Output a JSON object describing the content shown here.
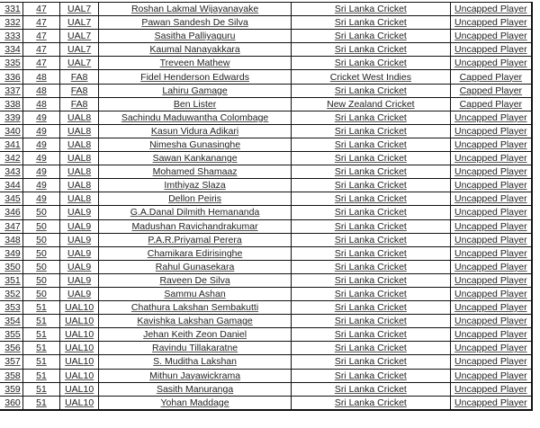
{
  "rows": [
    {
      "no": "331",
      "group": "47",
      "code": "UAL7",
      "name": "Roshan Lakmal Wijayanayake",
      "team": "Sri Lanka Cricket",
      "status": "Uncapped Player"
    },
    {
      "no": "332",
      "group": "47",
      "code": "UAL7",
      "name": "Pawan Sandesh De Silva",
      "team": "Sri Lanka Cricket",
      "status": "Uncapped Player"
    },
    {
      "no": "333",
      "group": "47",
      "code": "UAL7",
      "name": "Sasitha Palliyaguru",
      "team": "Sri Lanka Cricket",
      "status": "Uncapped Player"
    },
    {
      "no": "334",
      "group": "47",
      "code": "UAL7",
      "name": "Kaumal Nanayakkara",
      "team": "Sri Lanka Cricket",
      "status": "Uncapped Player"
    },
    {
      "no": "335",
      "group": "47",
      "code": "UAL7",
      "name": "Treveen Mathew",
      "team": "Sri Lanka Cricket",
      "status": "Uncapped Player"
    },
    {
      "no": "336",
      "group": "48",
      "code": "FA8",
      "name": "Fidel Henderson Edwards",
      "team": "Cricket West Indies",
      "status": "Capped Player"
    },
    {
      "no": "337",
      "group": "48",
      "code": "FA8",
      "name": "Lahiru Gamage",
      "team": "Sri Lanka Cricket",
      "status": "Capped Player"
    },
    {
      "no": "338",
      "group": "48",
      "code": "FA8",
      "name": "Ben Lister",
      "team": "New Zealand Cricket",
      "status": "Capped Player"
    },
    {
      "no": "339",
      "group": "49",
      "code": "UAL8",
      "name": "Sachindu Maduwantha Colombage",
      "team": "Sri Lanka Cricket",
      "status": "Uncapped Player"
    },
    {
      "no": "340",
      "group": "49",
      "code": "UAL8",
      "name": "Kasun Vidura Adikari",
      "team": "Sri Lanka Cricket",
      "status": "Uncapped Player"
    },
    {
      "no": "341",
      "group": "49",
      "code": "UAL8",
      "name": "Nimesha Gunasinghe",
      "team": "Sri Lanka Cricket",
      "status": "Uncapped Player"
    },
    {
      "no": "342",
      "group": "49",
      "code": "UAL8",
      "name": "Sawan Kankanange",
      "team": "Sri Lanka Cricket",
      "status": "Uncapped Player"
    },
    {
      "no": "343",
      "group": "49",
      "code": "UAL8",
      "name": "Mohamed Shamaaz",
      "team": "Sri Lanka Cricket",
      "status": "Uncapped Player"
    },
    {
      "no": "344",
      "group": "49",
      "code": "UAL8",
      "name": "Imthiyaz Slaza",
      "team": "Sri Lanka Cricket",
      "status": "Uncapped Player"
    },
    {
      "no": "345",
      "group": "49",
      "code": "UAL8",
      "name": "Dellon Peiris",
      "team": "Sri Lanka Cricket",
      "status": "Uncapped Player"
    },
    {
      "no": "346",
      "group": "50",
      "code": "UAL9",
      "name": "G.A.Danal Dilmith Hemananda",
      "team": "Sri Lanka Cricket",
      "status": "Uncapped Player"
    },
    {
      "no": "347",
      "group": "50",
      "code": "UAL9",
      "name": "Madushan Ravichandrakumar",
      "team": "Sri Lanka Cricket",
      "status": "Uncapped Player"
    },
    {
      "no": "348",
      "group": "50",
      "code": "UAL9",
      "name": "P.A.R.Priyamal Perera",
      "team": "Sri Lanka Cricket",
      "status": "Uncapped Player"
    },
    {
      "no": "349",
      "group": "50",
      "code": "UAL9",
      "name": "Chamikara Edirisinghe",
      "team": "Sri Lanka Cricket",
      "status": "Uncapped Player"
    },
    {
      "no": "350",
      "group": "50",
      "code": "UAL9",
      "name": "Rahul Gunasekara",
      "team": "Sri Lanka Cricket",
      "status": "Uncapped Player"
    },
    {
      "no": "351",
      "group": "50",
      "code": "UAL9",
      "name": "Raveen De Silva",
      "team": "Sri Lanka Cricket",
      "status": "Uncapped Player"
    },
    {
      "no": "352",
      "group": "50",
      "code": "UAL9",
      "name": "Sammu Ashan",
      "team": "Sri Lanka Cricket",
      "status": "Uncapped Player"
    },
    {
      "no": "353",
      "group": "51",
      "code": "UAL10",
      "name": "Chathura Lakshan Sembakutti",
      "team": "Sri Lanka Cricket",
      "status": "Uncapped Player"
    },
    {
      "no": "354",
      "group": "51",
      "code": "UAL10",
      "name": "Kavishka Lakshan Gamage",
      "team": "Sri Lanka Cricket",
      "status": "Uncapped Player"
    },
    {
      "no": "355",
      "group": "51",
      "code": "UAL10",
      "name": "Jehan Keith Zeon Daniel",
      "team": "Sri Lanka Cricket",
      "status": "Uncapped Player"
    },
    {
      "no": "356",
      "group": "51",
      "code": "UAL10",
      "name": "Ravindu Tillakaratne",
      "team": "Sri Lanka Cricket",
      "status": "Uncapped Player"
    },
    {
      "no": "357",
      "group": "51",
      "code": "UAL10",
      "name": "S. Muditha Lakshan",
      "team": "Sri Lanka Cricket",
      "status": "Uncapped Player"
    },
    {
      "no": "358",
      "group": "51",
      "code": "UAL10",
      "name": "Mithun Jayawickrama",
      "team": "Sri Lanka Cricket",
      "status": "Uncapped Player"
    },
    {
      "no": "359",
      "group": "51",
      "code": "UAL10",
      "name": "Sasith Manuranga",
      "team": "Sri Lanka Cricket",
      "status": "Uncapped Player"
    },
    {
      "no": "360",
      "group": "51",
      "code": "UAL10",
      "name": "Yohan Maddage",
      "team": "Sri Lanka Cricket",
      "status": "Uncapped Player"
    }
  ]
}
